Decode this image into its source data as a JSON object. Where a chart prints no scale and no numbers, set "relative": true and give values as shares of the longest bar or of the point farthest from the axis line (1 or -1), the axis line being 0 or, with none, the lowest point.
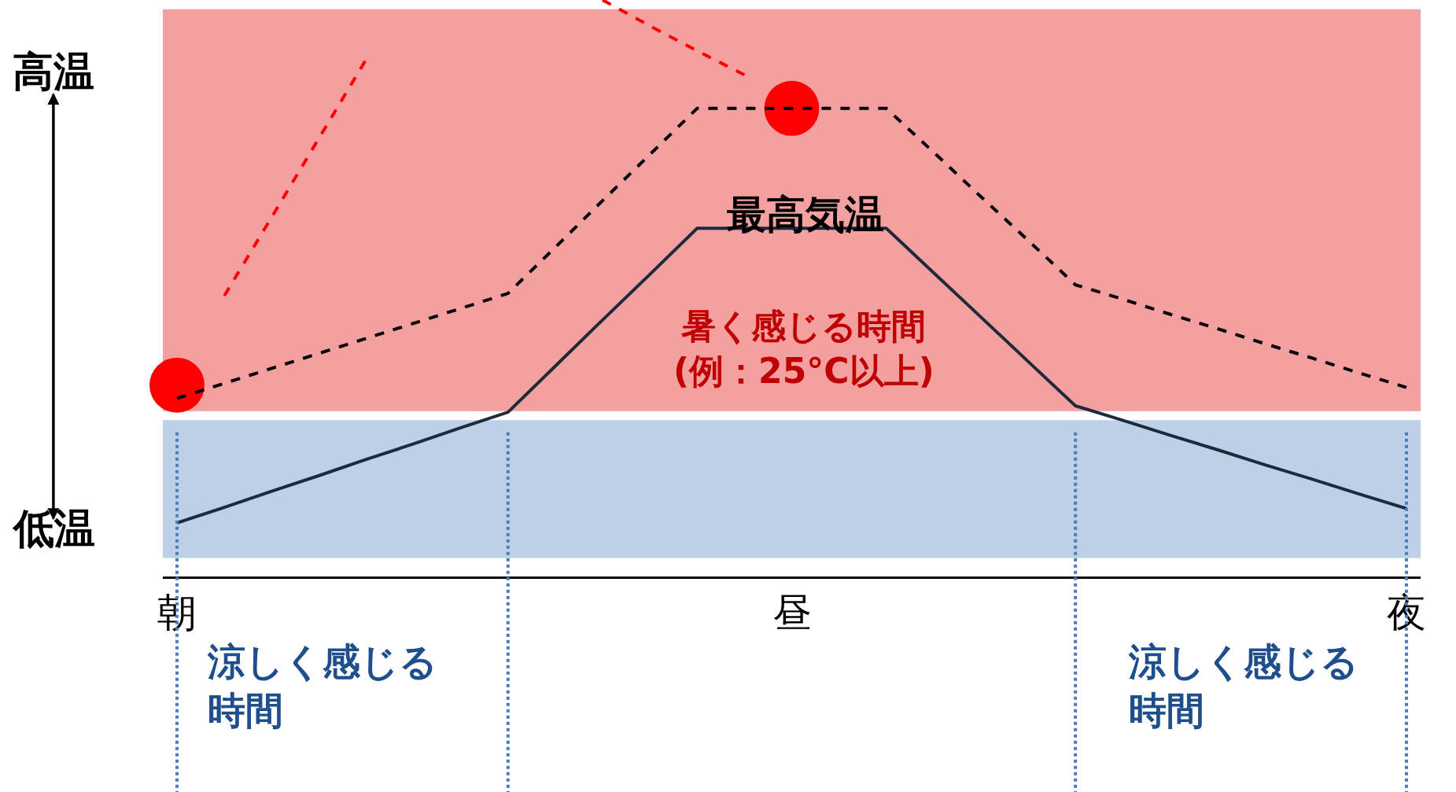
{
  "chart_data": {
    "type": "line",
    "relative": true,
    "categories": [
      "朝",
      null,
      null,
      null,
      null,
      null,
      null,
      null,
      null,
      null,
      null,
      null,
      null,
      "昼",
      null,
      null,
      null,
      null,
      null,
      null,
      null,
      null,
      null,
      null,
      null,
      null,
      "夜"
    ],
    "series": [
      {
        "color": "#1c2a3c",
        "line_style": "solid",
        "values": [
          0.093,
          0.12,
          0.148,
          0.175,
          0.203,
          0.23,
          0.258,
          0.285,
          0.365,
          0.445,
          0.524,
          0.604,
          0.604,
          0.604,
          0.604,
          0.604,
          0.527,
          0.45,
          0.373,
          0.296,
          0.271,
          0.245,
          0.22,
          0.194,
          0.169,
          0.143,
          0.118
        ]
      },
      {
        "color": "#000000",
        "line_style": "dashed",
        "values": [
          0.309,
          0.335,
          0.361,
          0.387,
          0.413,
          0.439,
          0.465,
          0.491,
          0.571,
          0.652,
          0.732,
          0.812,
          0.812,
          0.812,
          0.812,
          0.812,
          0.736,
          0.659,
          0.583,
          0.506,
          0.481,
          0.455,
          0.43,
          0.404,
          0.379,
          0.353,
          0.328
        ]
      },
      {
        "color": "#ff0000",
        "line_style": "dashed",
        "values": [
          null,
          0.487,
          0.623,
          0.76,
          0.897,
          null,
          null,
          null,
          null,
          1.0,
          0.955,
          0.912,
          0.87,
          null,
          null,
          null,
          null,
          null,
          null,
          null,
          null,
          null,
          null,
          null,
          null,
          null,
          null
        ]
      },
      {
        "type": "scatter",
        "color": "#ff0000",
        "marker": "circle",
        "values": [
          0.332,
          null,
          null,
          null,
          null,
          null,
          null,
          null,
          null,
          null,
          null,
          null,
          null,
          0.812,
          null,
          null,
          null,
          null,
          null,
          null,
          null,
          null,
          null,
          null,
          null,
          null,
          null
        ]
      }
    ],
    "bands": [
      {
        "axis": "y",
        "from": 0.287,
        "to": 0.984,
        "color": "#f4a0a0",
        "label": "暑く感じる時間(例：25°C以上)"
      },
      {
        "axis": "y",
        "from": 0.032,
        "to": 0.271,
        "color": "#bed0e6"
      }
    ],
    "annotations": [
      "最高気温",
      "高温",
      "低温",
      "涼しく感じる時間",
      "涼しく感じる時間"
    ]
  }
}
